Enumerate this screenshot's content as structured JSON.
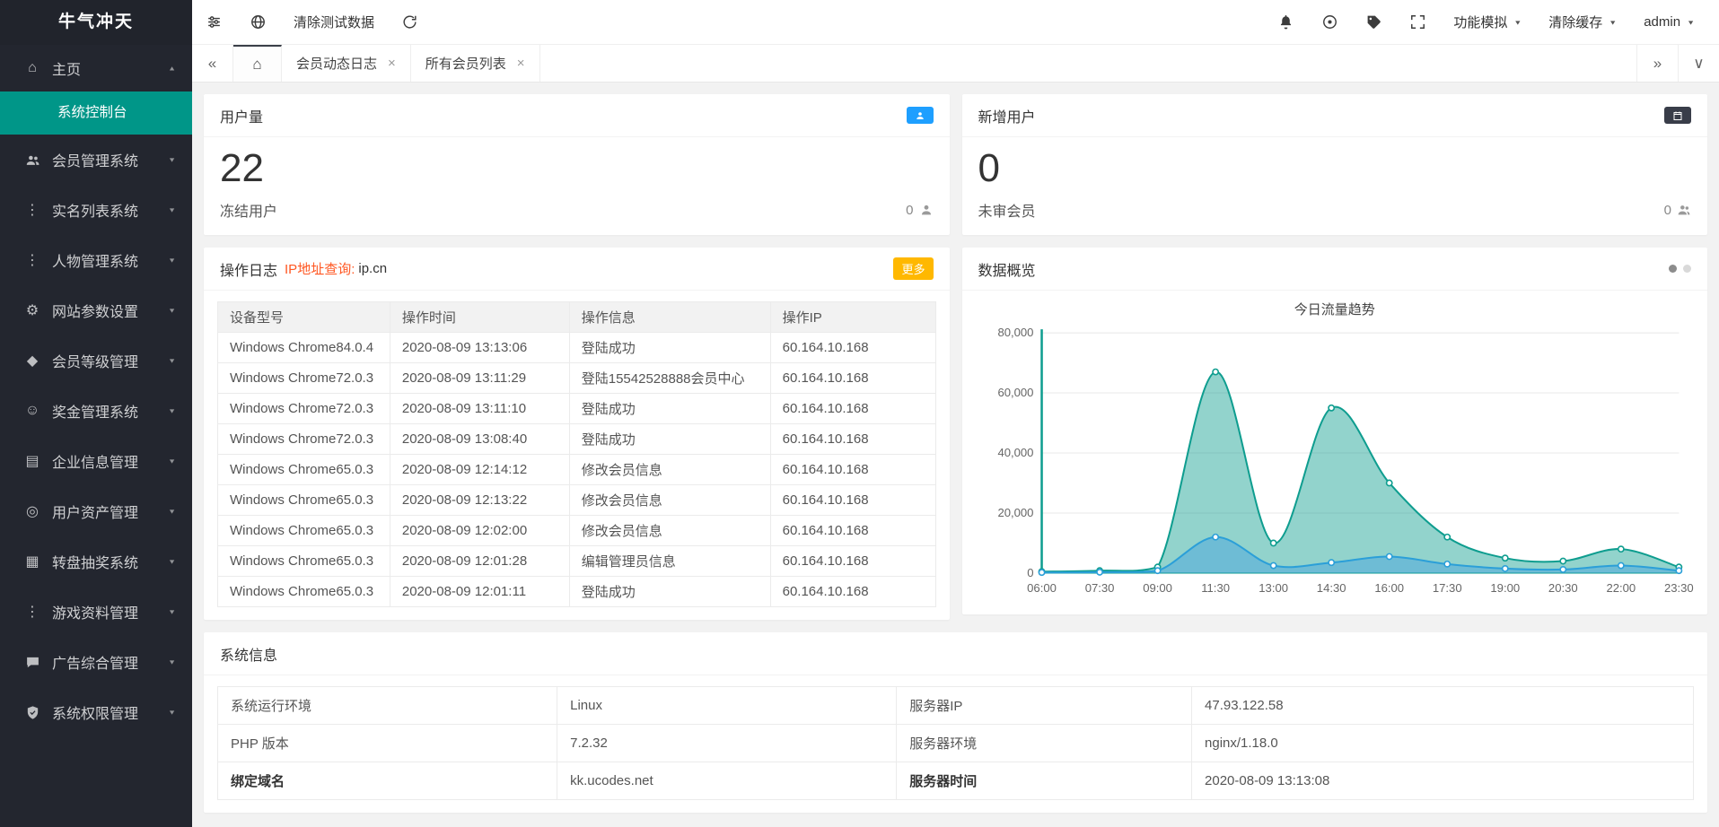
{
  "app": {
    "title": "牛气冲天"
  },
  "sidebar": {
    "home": {
      "label": "主页"
    },
    "console": {
      "label": "系统控制台"
    },
    "items": [
      {
        "name": "member-management",
        "label": "会员管理系统",
        "icon": "users-icon"
      },
      {
        "name": "realname-list",
        "label": "实名列表系统",
        "icon": "list-dots-icon"
      },
      {
        "name": "character-management",
        "label": "人物管理系统",
        "icon": "person-list-icon"
      },
      {
        "name": "site-params",
        "label": "网站参数设置",
        "icon": "gear-icon"
      },
      {
        "name": "member-level",
        "label": "会员等级管理",
        "icon": "level-diamond-icon"
      },
      {
        "name": "bonus-management",
        "label": "奖金管理系统",
        "icon": "bonus-smiley-icon"
      },
      {
        "name": "enterprise-info",
        "label": "企业信息管理",
        "icon": "enterprise-card-icon"
      },
      {
        "name": "user-assets",
        "label": "用户资产管理",
        "icon": "assets-coin-icon"
      },
      {
        "name": "wheel-lottery",
        "label": "转盘抽奖系统",
        "icon": "lottery-grid-icon"
      },
      {
        "name": "game-data",
        "label": "游戏资料管理",
        "icon": "game-dots-icon"
      },
      {
        "name": "ads-management",
        "label": "广告综合管理",
        "icon": "ads-bubble-icon"
      },
      {
        "name": "system-permission",
        "label": "系统权限管理",
        "icon": "permission-shield-icon"
      }
    ]
  },
  "topbar": {
    "clear_test_data": "清除测试数据",
    "menus": [
      {
        "label": "功能模拟"
      },
      {
        "label": "清除缓存"
      },
      {
        "label": "admin"
      }
    ]
  },
  "tabs": {
    "items": [
      {
        "label": "会员动态日志"
      },
      {
        "label": "所有会员列表"
      }
    ]
  },
  "cards": {
    "user_count": {
      "title": "用户量",
      "value": "22",
      "sub_label": "冻结用户",
      "sub_value": "0",
      "badge_color": "#1E9FFF"
    },
    "new_users": {
      "title": "新增用户",
      "value": "0",
      "sub_label": "未审会员",
      "sub_value": "0",
      "badge_color": "#393D49"
    },
    "op_log": {
      "title": "操作日志",
      "ip_query_label": "IP地址查询:",
      "ip_query_value": "ip.cn",
      "more_label": "更多",
      "headers": [
        "设备型号",
        "操作时间",
        "操作信息",
        "操作IP"
      ],
      "rows": [
        [
          "Windows Chrome84.0.4",
          "2020-08-09 13:13:06",
          "登陆成功",
          "60.164.10.168"
        ],
        [
          "Windows Chrome72.0.3",
          "2020-08-09 13:11:29",
          "登陆15542528888会员中心",
          "60.164.10.168"
        ],
        [
          "Windows Chrome72.0.3",
          "2020-08-09 13:11:10",
          "登陆成功",
          "60.164.10.168"
        ],
        [
          "Windows Chrome72.0.3",
          "2020-08-09 13:08:40",
          "登陆成功",
          "60.164.10.168"
        ],
        [
          "Windows Chrome65.0.3",
          "2020-08-09 12:14:12",
          "修改会员信息",
          "60.164.10.168"
        ],
        [
          "Windows Chrome65.0.3",
          "2020-08-09 12:13:22",
          "修改会员信息",
          "60.164.10.168"
        ],
        [
          "Windows Chrome65.0.3",
          "2020-08-09 12:02:00",
          "修改会员信息",
          "60.164.10.168"
        ],
        [
          "Windows Chrome65.0.3",
          "2020-08-09 12:01:28",
          "编辑管理员信息",
          "60.164.10.168"
        ],
        [
          "Windows Chrome65.0.3",
          "2020-08-09 12:01:11",
          "登陆成功",
          "60.164.10.168"
        ]
      ]
    },
    "overview": {
      "title": "数据概览"
    },
    "system_info": {
      "title": "系统信息",
      "rows": [
        {
          "cells": [
            "系统运行环境",
            "Linux",
            "服务器IP",
            "47.93.122.58"
          ],
          "bold_labels": false
        },
        {
          "cells": [
            "PHP 版本",
            "7.2.32",
            "服务器环境",
            "nginx/1.18.0"
          ],
          "bold_labels": false
        },
        {
          "cells": [
            "绑定域名",
            "kk.ucodes.net",
            "服务器时间",
            "2020-08-09 13:13:08"
          ],
          "bold_labels": true
        }
      ]
    }
  },
  "chart_data": {
    "type": "area",
    "title": "今日流量趋势",
    "x": [
      "06:00",
      "07:30",
      "09:00",
      "11:30",
      "13:00",
      "14:30",
      "16:00",
      "17:30",
      "19:00",
      "20:30",
      "22:00",
      "23:30"
    ],
    "series": [
      {
        "name": "series-1",
        "color": "#0e9d8f",
        "fill": "rgba(14,157,143,0.45)",
        "values": [
          500,
          800,
          2000,
          67000,
          10000,
          55000,
          30000,
          12000,
          5000,
          4000,
          8000,
          2000
        ]
      },
      {
        "name": "series-2",
        "color": "#2b9fd8",
        "fill": "rgba(80,170,220,0.55)",
        "values": [
          200,
          300,
          800,
          12000,
          2500,
          3500,
          5500,
          3000,
          1500,
          1200,
          2500,
          800
        ]
      }
    ],
    "ylim": [
      0,
      80000
    ],
    "yticks": [
      0,
      20000,
      40000,
      60000,
      80000
    ],
    "grid": true,
    "legend_position": "none"
  }
}
